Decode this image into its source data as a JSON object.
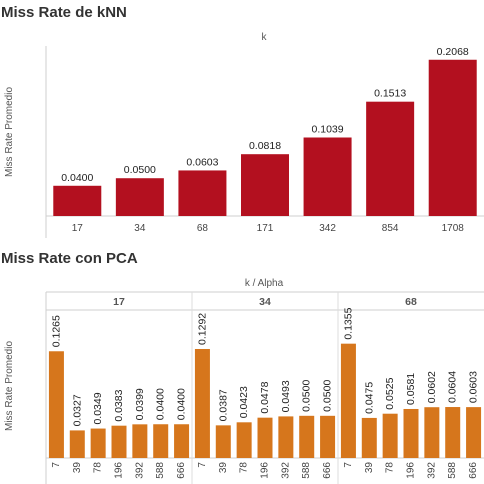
{
  "chart_data": [
    {
      "type": "bar",
      "title": "Miss Rate de kNN",
      "column_header": "k",
      "ylabel": "Miss Rate Promedio",
      "categories": [
        "17",
        "34",
        "68",
        "171",
        "342",
        "854",
        "1708"
      ],
      "values": [
        0.04,
        0.05,
        0.0603,
        0.0818,
        0.1039,
        0.1513,
        0.2068
      ],
      "data_labels": [
        "0.0400",
        "0.0500",
        "0.0603",
        "0.0818",
        "0.1039",
        "0.1513",
        "0.2068"
      ],
      "ylim": [
        0,
        0.225
      ],
      "grid": false,
      "color": "#b3101f"
    },
    {
      "type": "bar",
      "title": "Miss Rate con PCA",
      "column_header": "k  /  Alpha",
      "ylabel": "Miss Rate Promedio",
      "ylim": [
        0,
        0.16
      ],
      "grid": false,
      "color": "#d6761c",
      "groups": [
        {
          "name": "17",
          "categories": [
            "7",
            "39",
            "78",
            "196",
            "392",
            "588",
            "666"
          ],
          "values": [
            0.1265,
            0.0327,
            0.0349,
            0.0383,
            0.0399,
            0.04,
            0.04
          ],
          "data_labels": [
            "0.1265",
            "0.0327",
            "0.0349",
            "0.0383",
            "0.0399",
            "0.0400",
            "0.0400"
          ]
        },
        {
          "name": "34",
          "categories": [
            "7",
            "39",
            "78",
            "196",
            "392",
            "588",
            "666"
          ],
          "values": [
            0.1292,
            0.0387,
            0.0423,
            0.0478,
            0.0493,
            0.05,
            0.05
          ],
          "data_labels": [
            "0.1292",
            "0.0387",
            "0.0423",
            "0.0478",
            "0.0493",
            "0.0500",
            "0.0500"
          ]
        },
        {
          "name": "68",
          "categories": [
            "7",
            "39",
            "78",
            "196",
            "392",
            "588",
            "666"
          ],
          "values": [
            0.1355,
            0.0475,
            0.0525,
            0.0581,
            0.0602,
            0.0604,
            0.0603
          ],
          "data_labels": [
            "0.1355",
            "0.0475",
            "0.0525",
            "0.0581",
            "0.0602",
            "0.0604",
            "0.0603"
          ]
        }
      ]
    }
  ]
}
